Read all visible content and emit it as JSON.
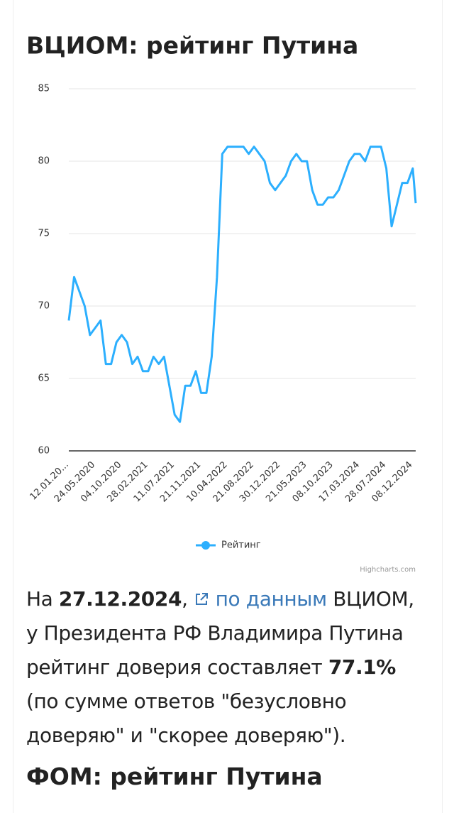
{
  "chart_data": {
    "type": "line",
    "title": "ВЦИОМ: рейтинг Путина",
    "categories": [
      "12.01.20...",
      null,
      null,
      null,
      null,
      "24.05.2020",
      null,
      null,
      null,
      null,
      "04.10.2020",
      null,
      null,
      null,
      null,
      "28.02.2021",
      null,
      null,
      null,
      null,
      "11.07.2021",
      null,
      null,
      null,
      null,
      "21.11.2021",
      null,
      null,
      null,
      null,
      "10.04.2022",
      null,
      null,
      null,
      null,
      "21.08.2022",
      null,
      null,
      null,
      null,
      "30.12.2022",
      null,
      null,
      null,
      null,
      "21.05.2023",
      null,
      null,
      null,
      null,
      "08.10.2023",
      null,
      null,
      null,
      null,
      "17.03.2024",
      null,
      null,
      null,
      null,
      "28.07.2024",
      null,
      null,
      null,
      null,
      "08.12.2024",
      null
    ],
    "series": [
      {
        "name": "Рейтинг",
        "color": "#2caffe",
        "values": [
          69,
          72,
          71,
          70,
          68,
          68.5,
          69,
          66,
          66,
          67.5,
          68,
          67.5,
          66,
          66.5,
          65.5,
          65.5,
          66.5,
          66,
          66.5,
          64.5,
          62.5,
          62,
          64.5,
          64.5,
          65.5,
          64,
          64,
          66.5,
          72,
          80.5,
          81,
          81,
          81,
          81,
          80.5,
          81,
          80.5,
          80,
          78.5,
          78,
          78.5,
          79,
          80,
          80.5,
          80,
          80,
          78,
          77,
          77,
          77.5,
          77.5,
          78,
          79,
          80,
          80.5,
          80.5,
          80,
          81,
          81,
          81,
          79.5,
          75.5,
          77,
          78.5,
          78.5,
          79.5,
          77.1
        ]
      }
    ],
    "ylim": [
      60,
      85
    ],
    "yticks": [
      60,
      65,
      70,
      75,
      80,
      85
    ],
    "grid": true,
    "legend": "bottom",
    "credit": "Highcharts.com"
  },
  "text": {
    "p1": "На ",
    "date": "27.12.2024",
    "p2": ", ",
    "link": "по данным",
    "p3": " ВЦИОМ, у Президента РФ Владимира Путина рейтинг доверия составляет ",
    "value": "77.1%",
    "p4": " (по сумме ответов \"безусловно доверяю\" и \"скорее доверяю\")."
  },
  "heading2": "ФОМ: рейтинг Путина"
}
